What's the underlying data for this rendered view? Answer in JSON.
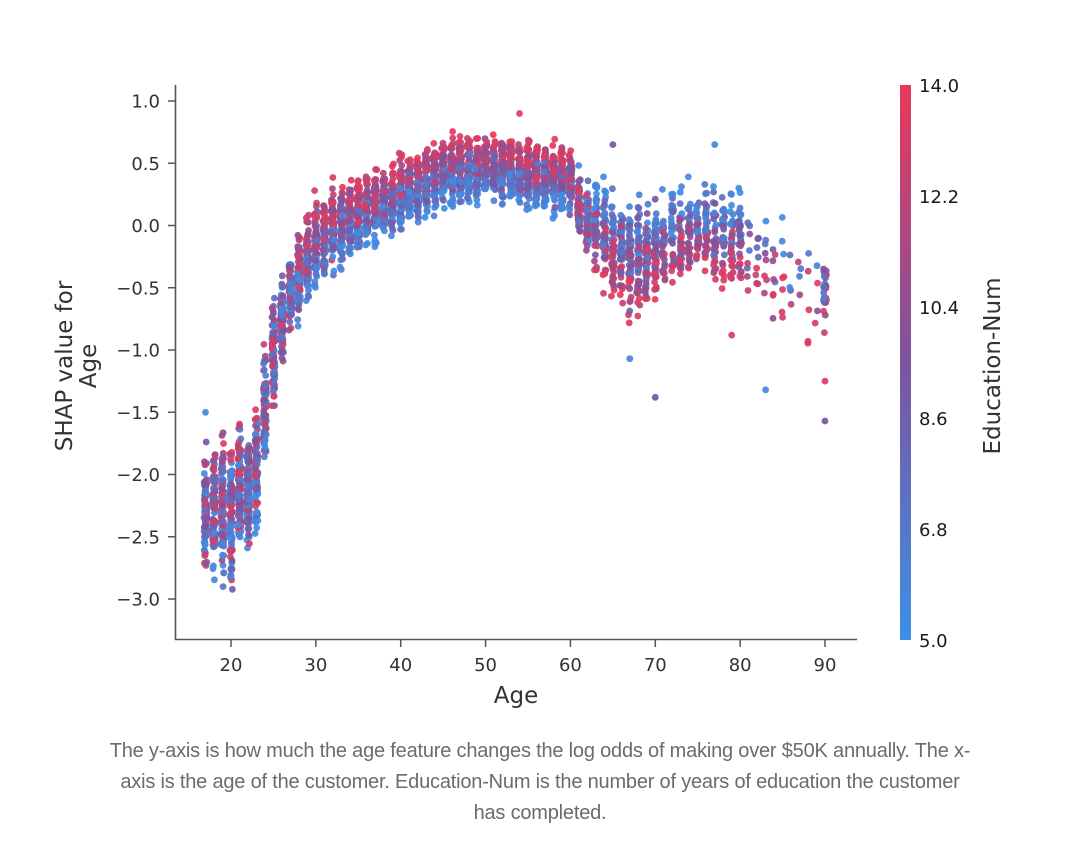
{
  "chart_data": {
    "type": "scatter",
    "title": "",
    "xlabel": "Age",
    "ylabel_lines": [
      "SHAP value for",
      "Age"
    ],
    "xlim": [
      13.5,
      93.8
    ],
    "ylim": [
      -3.35,
      1.13
    ],
    "x_ticks": [
      20,
      30,
      40,
      50,
      60,
      70,
      80,
      90
    ],
    "x_tick_labels": [
      "20",
      "30",
      "40",
      "50",
      "60",
      "70",
      "80",
      "90"
    ],
    "y_ticks": [
      1.0,
      0.5,
      0.0,
      -0.5,
      -1.0,
      -1.5,
      -2.0,
      -2.5,
      -3.0
    ],
    "y_tick_labels": [
      "1.0",
      "0.5",
      "0.0",
      "−0.5",
      "−1.0",
      "−1.5",
      "−2.0",
      "−2.5",
      "−3.0"
    ],
    "grid": false,
    "colorbar": {
      "label": "Education-Num",
      "range": [
        5.0,
        14.0
      ],
      "ticks": [
        5.0,
        6.8,
        8.6,
        10.4,
        12.2,
        14.0
      ],
      "tick_labels": [
        "5.0",
        "6.8",
        "8.6",
        "10.4",
        "12.2",
        "14.0"
      ],
      "color_low": "#3d8fe6",
      "color_mid": "#7b55a0",
      "color_high": "#e8395a"
    },
    "trend": {
      "description_points_age": [
        17,
        18,
        19,
        20,
        21,
        22,
        23,
        24,
        25,
        26,
        27,
        28,
        30,
        33,
        36,
        40,
        45,
        50,
        55,
        58,
        60,
        62,
        65,
        68,
        70,
        73,
        76,
        80,
        85,
        90
      ],
      "center_shap": [
        -2.3,
        -2.3,
        -2.25,
        -2.3,
        -2.15,
        -2.1,
        -1.95,
        -1.45,
        -1.05,
        -0.75,
        -0.55,
        -0.4,
        -0.15,
        0.0,
        0.12,
        0.25,
        0.42,
        0.47,
        0.42,
        0.38,
        0.35,
        0.05,
        -0.15,
        -0.3,
        -0.2,
        -0.1,
        -0.05,
        -0.15,
        -0.4,
        -0.5
      ],
      "spread": [
        0.5,
        0.5,
        0.55,
        0.6,
        0.55,
        0.5,
        0.45,
        0.45,
        0.45,
        0.35,
        0.3,
        0.3,
        0.3,
        0.28,
        0.25,
        0.22,
        0.22,
        0.2,
        0.2,
        0.2,
        0.25,
        0.3,
        0.35,
        0.4,
        0.35,
        0.3,
        0.25,
        0.3,
        0.3,
        0.4
      ]
    },
    "outliers": [
      {
        "x": 77,
        "y": 0.65,
        "edu": 5.5
      },
      {
        "x": 83,
        "y": -1.32,
        "edu": 5.5
      },
      {
        "x": 67,
        "y": -1.07,
        "edu": 6.0
      },
      {
        "x": 70,
        "y": -1.38,
        "edu": 9.5
      },
      {
        "x": 90,
        "y": -1.57,
        "edu": 9.5
      },
      {
        "x": 90,
        "y": -1.25,
        "edu": 13.5
      },
      {
        "x": 88,
        "y": -0.93,
        "edu": 13.5
      },
      {
        "x": 79,
        "y": -0.88,
        "edu": 13.5
      },
      {
        "x": 65,
        "y": 0.65,
        "edu": 9.5
      },
      {
        "x": 54,
        "y": 0.9,
        "edu": 13.5
      },
      {
        "x": 17,
        "y": -1.5,
        "edu": 5.5
      }
    ]
  },
  "caption": {
    "lines": [
      "The y-axis is how much the age feature changes the log odds of making over $50K annually. The x-",
      "axis is the age of the customer. Education-Num is the number of years of education the customer",
      "has completed."
    ]
  }
}
